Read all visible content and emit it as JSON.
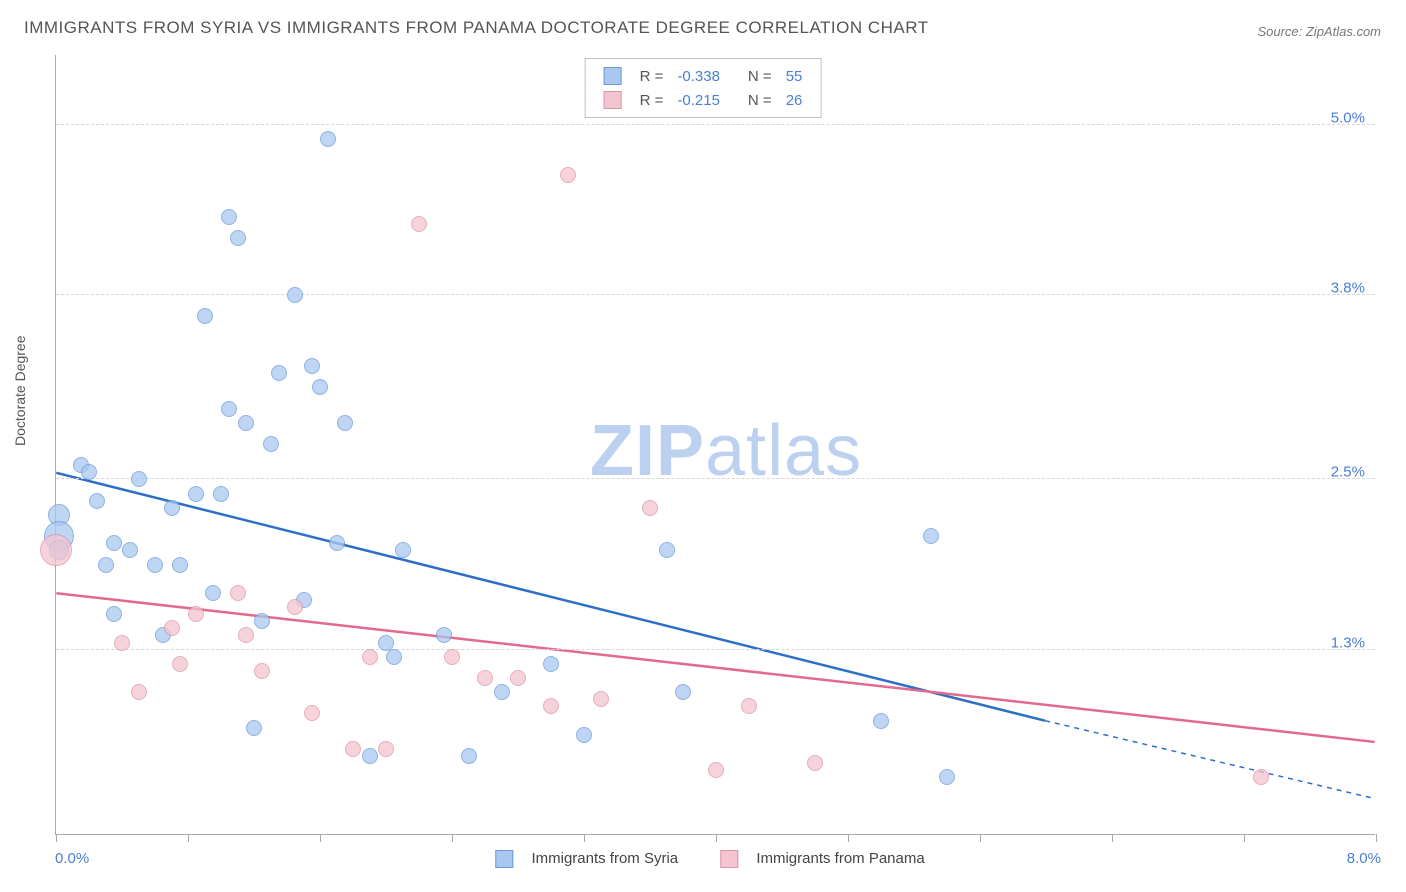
{
  "title": "IMMIGRANTS FROM SYRIA VS IMMIGRANTS FROM PANAMA DOCTORATE DEGREE CORRELATION CHART",
  "source": "Source: ZipAtlas.com",
  "watermark_prefix": "ZIP",
  "watermark_suffix": "atlas",
  "y_axis": {
    "label": "Doctorate Degree",
    "ticks": [
      {
        "value": 5.0,
        "label": "5.0%"
      },
      {
        "value": 3.8,
        "label": "3.8%"
      },
      {
        "value": 2.5,
        "label": "2.5%"
      },
      {
        "value": 1.3,
        "label": "1.3%"
      }
    ],
    "min": 0.0,
    "max": 5.5
  },
  "x_axis": {
    "min": 0.0,
    "max": 8.0,
    "min_label": "0.0%",
    "max_label": "8.0%",
    "ticks": [
      0,
      0.8,
      1.6,
      2.4,
      3.2,
      4.0,
      4.8,
      5.6,
      6.4,
      7.2,
      8.0
    ]
  },
  "series": [
    {
      "name": "Immigrants from Syria",
      "fill": "#a9c7ef",
      "stroke": "#6a9ad7",
      "line_color": "#2e6fc4",
      "r_value": "-0.338",
      "n_value": "55",
      "regression": {
        "x1": 0.0,
        "y1": 2.55,
        "x2": 6.0,
        "y2": 0.8,
        "extrap_x2": 8.0,
        "extrap_y2": 0.25
      },
      "points": [
        {
          "x": 0.02,
          "y": 2.25,
          "r": 11
        },
        {
          "x": 0.02,
          "y": 2.1,
          "r": 15
        },
        {
          "x": 0.02,
          "y": 2.0,
          "r": 10
        },
        {
          "x": 0.15,
          "y": 2.6,
          "r": 8
        },
        {
          "x": 0.2,
          "y": 2.55,
          "r": 8
        },
        {
          "x": 0.25,
          "y": 2.35,
          "r": 8
        },
        {
          "x": 0.3,
          "y": 1.9,
          "r": 8
        },
        {
          "x": 0.35,
          "y": 2.05,
          "r": 8
        },
        {
          "x": 0.35,
          "y": 1.55,
          "r": 8
        },
        {
          "x": 0.45,
          "y": 2.0,
          "r": 8
        },
        {
          "x": 0.5,
          "y": 2.5,
          "r": 8
        },
        {
          "x": 0.6,
          "y": 1.9,
          "r": 8
        },
        {
          "x": 0.65,
          "y": 1.4,
          "r": 8
        },
        {
          "x": 0.7,
          "y": 2.3,
          "r": 8
        },
        {
          "x": 0.75,
          "y": 1.9,
          "r": 8
        },
        {
          "x": 0.85,
          "y": 2.4,
          "r": 8
        },
        {
          "x": 0.9,
          "y": 3.65,
          "r": 8
        },
        {
          "x": 0.95,
          "y": 1.7,
          "r": 8
        },
        {
          "x": 1.0,
          "y": 2.4,
          "r": 8
        },
        {
          "x": 1.05,
          "y": 3.0,
          "r": 8
        },
        {
          "x": 1.05,
          "y": 4.35,
          "r": 8
        },
        {
          "x": 1.1,
          "y": 4.2,
          "r": 8
        },
        {
          "x": 1.15,
          "y": 2.9,
          "r": 8
        },
        {
          "x": 1.2,
          "y": 0.75,
          "r": 8
        },
        {
          "x": 1.25,
          "y": 1.5,
          "r": 8
        },
        {
          "x": 1.3,
          "y": 2.75,
          "r": 8
        },
        {
          "x": 1.35,
          "y": 3.25,
          "r": 8
        },
        {
          "x": 1.45,
          "y": 3.8,
          "r": 8
        },
        {
          "x": 1.5,
          "y": 1.65,
          "r": 8
        },
        {
          "x": 1.55,
          "y": 3.3,
          "r": 8
        },
        {
          "x": 1.6,
          "y": 3.15,
          "r": 8
        },
        {
          "x": 1.65,
          "y": 4.9,
          "r": 8
        },
        {
          "x": 1.7,
          "y": 2.05,
          "r": 8
        },
        {
          "x": 1.75,
          "y": 2.9,
          "r": 8
        },
        {
          "x": 1.9,
          "y": 0.55,
          "r": 8
        },
        {
          "x": 2.0,
          "y": 1.35,
          "r": 8
        },
        {
          "x": 2.05,
          "y": 1.25,
          "r": 8
        },
        {
          "x": 2.1,
          "y": 2.0,
          "r": 8
        },
        {
          "x": 2.35,
          "y": 1.4,
          "r": 8
        },
        {
          "x": 2.5,
          "y": 0.55,
          "r": 8
        },
        {
          "x": 2.7,
          "y": 1.0,
          "r": 8
        },
        {
          "x": 3.0,
          "y": 1.2,
          "r": 8
        },
        {
          "x": 3.2,
          "y": 0.7,
          "r": 8
        },
        {
          "x": 3.7,
          "y": 2.0,
          "r": 8
        },
        {
          "x": 3.8,
          "y": 1.0,
          "r": 8
        },
        {
          "x": 5.0,
          "y": 0.8,
          "r": 8
        },
        {
          "x": 5.3,
          "y": 2.1,
          "r": 8
        },
        {
          "x": 5.4,
          "y": 0.4,
          "r": 8
        }
      ]
    },
    {
      "name": "Immigrants from Panama",
      "fill": "#f4c4d0",
      "stroke": "#db94a9",
      "line_color": "#e16a8d",
      "r_value": "-0.215",
      "n_value": "26",
      "regression": {
        "x1": 0.0,
        "y1": 1.7,
        "x2": 8.0,
        "y2": 0.65
      },
      "points": [
        {
          "x": 0.0,
          "y": 2.0,
          "r": 16
        },
        {
          "x": 0.4,
          "y": 1.35,
          "r": 8
        },
        {
          "x": 0.5,
          "y": 1.0,
          "r": 8
        },
        {
          "x": 0.7,
          "y": 1.45,
          "r": 8
        },
        {
          "x": 0.75,
          "y": 1.2,
          "r": 8
        },
        {
          "x": 0.85,
          "y": 1.55,
          "r": 8
        },
        {
          "x": 1.1,
          "y": 1.7,
          "r": 8
        },
        {
          "x": 1.15,
          "y": 1.4,
          "r": 8
        },
        {
          "x": 1.25,
          "y": 1.15,
          "r": 8
        },
        {
          "x": 1.45,
          "y": 1.6,
          "r": 8
        },
        {
          "x": 1.55,
          "y": 0.85,
          "r": 8
        },
        {
          "x": 1.8,
          "y": 0.6,
          "r": 8
        },
        {
          "x": 1.9,
          "y": 1.25,
          "r": 8
        },
        {
          "x": 2.0,
          "y": 0.6,
          "r": 8
        },
        {
          "x": 2.2,
          "y": 4.3,
          "r": 8
        },
        {
          "x": 2.4,
          "y": 1.25,
          "r": 8
        },
        {
          "x": 2.6,
          "y": 1.1,
          "r": 8
        },
        {
          "x": 2.8,
          "y": 1.1,
          "r": 8
        },
        {
          "x": 3.0,
          "y": 0.9,
          "r": 8
        },
        {
          "x": 3.1,
          "y": 4.65,
          "r": 8
        },
        {
          "x": 3.3,
          "y": 0.95,
          "r": 8
        },
        {
          "x": 3.6,
          "y": 2.3,
          "r": 8
        },
        {
          "x": 4.0,
          "y": 0.45,
          "r": 8
        },
        {
          "x": 4.2,
          "y": 0.9,
          "r": 8
        },
        {
          "x": 4.6,
          "y": 0.5,
          "r": 8
        },
        {
          "x": 7.3,
          "y": 0.4,
          "r": 8
        }
      ]
    }
  ],
  "legend_labels": {
    "r": "R =",
    "n": "N ="
  }
}
